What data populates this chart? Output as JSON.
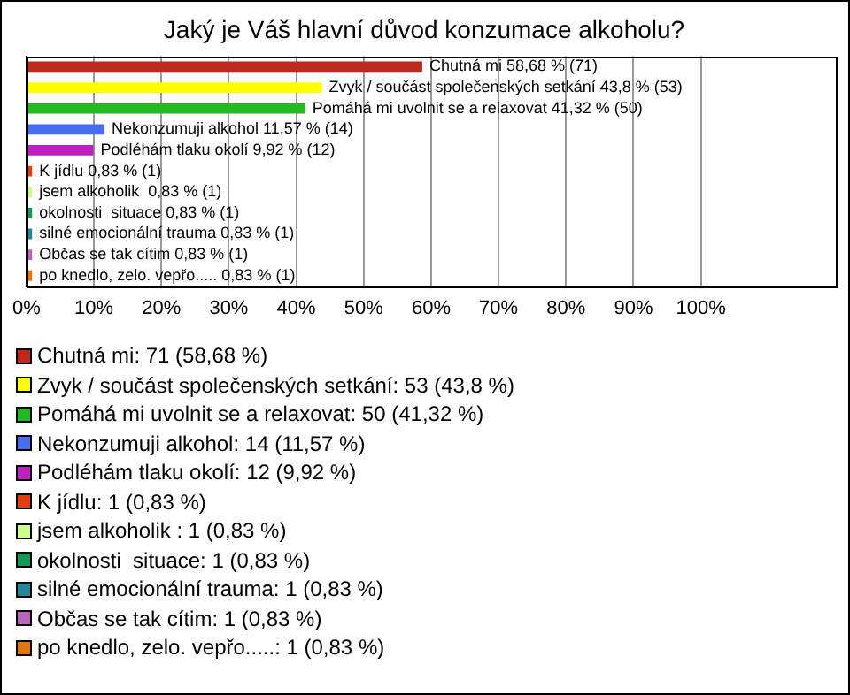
{
  "chart_data": {
    "type": "bar",
    "orientation": "horizontal",
    "stacked": true,
    "title": "Jaký je Váš hlavní důvod konzumace alkoholu?",
    "categories": [
      null,
      null,
      null,
      null,
      null,
      null,
      null,
      null,
      null,
      null,
      null
    ],
    "series": [
      {
        "name": "Chutná mi: 71 (58,68 %)",
        "color": "#c0281c",
        "values": [
          58.68,
          null,
          null,
          null,
          null,
          null,
          null,
          null,
          null,
          null,
          null
        ],
        "value_labels": [
          "Chutná mi 58,68 % (71)",
          null,
          null,
          null,
          null,
          null,
          null,
          null,
          null,
          null,
          null
        ]
      },
      {
        "name": "Zvyk / součást společenských setkání: 53 (43,8 %)",
        "color": "#ffff00",
        "values": [
          null,
          43.8,
          null,
          null,
          null,
          null,
          null,
          null,
          null,
          null,
          null
        ],
        "value_labels": [
          null,
          "Zvyk / součást společenských setkání 43,8 % (53)",
          null,
          null,
          null,
          null,
          null,
          null,
          null,
          null,
          null
        ]
      },
      {
        "name": "Pomáhá mi uvolnit se a relaxovat: 50 (41,32 %)",
        "color": "#22bb22",
        "values": [
          null,
          null,
          41.32,
          null,
          null,
          null,
          null,
          null,
          null,
          null,
          null
        ],
        "value_labels": [
          null,
          null,
          "Pomáhá mi uvolnit se a relaxovat 41,32 % (50)",
          null,
          null,
          null,
          null,
          null,
          null,
          null,
          null
        ]
      },
      {
        "name": "Nekonzumuji alkohol: 14 (11,57 %)",
        "color": "#4a6cf0",
        "values": [
          null,
          null,
          null,
          11.57,
          null,
          null,
          null,
          null,
          null,
          null,
          null
        ],
        "value_labels": [
          null,
          null,
          null,
          "Nekonzumuji alkohol 11,57 % (14)",
          null,
          null,
          null,
          null,
          null,
          null,
          null
        ]
      },
      {
        "name": "Podléhám tlaku okolí: 12 (9,92 %)",
        "color": "#c020c0",
        "values": [
          null,
          null,
          null,
          null,
          9.92,
          null,
          null,
          null,
          null,
          null,
          null
        ],
        "value_labels": [
          null,
          null,
          null,
          null,
          "Podléhám tlaku okolí 9,92 % (12)",
          null,
          null,
          null,
          null,
          null,
          null
        ]
      },
      {
        "name": "K jídlu: 1 (0,83 %)",
        "color": "#e04010",
        "values": [
          null,
          null,
          null,
          null,
          null,
          0.83,
          null,
          null,
          null,
          null,
          null
        ],
        "value_labels": [
          null,
          null,
          null,
          null,
          null,
          "K jídlu 0,83 % (1)",
          null,
          null,
          null,
          null,
          null
        ]
      },
      {
        "name": "jsem alkoholik : 1 (0,83 %)",
        "color": "#ccff88",
        "values": [
          null,
          null,
          null,
          null,
          null,
          null,
          0.83,
          null,
          null,
          null,
          null
        ],
        "value_labels": [
          null,
          null,
          null,
          null,
          null,
          null,
          "jsem alkoholik  0,83 % (1)",
          null,
          null,
          null,
          null
        ]
      },
      {
        "name": "okolnosti  situace: 1 (0,83 %)",
        "color": "#119955",
        "values": [
          null,
          null,
          null,
          null,
          null,
          null,
          null,
          0.83,
          null,
          null,
          null
        ],
        "value_labels": [
          null,
          null,
          null,
          null,
          null,
          null,
          null,
          "okolnosti  situace 0,83 % (1)",
          null,
          null,
          null
        ]
      },
      {
        "name": "silné emocionální trauma: 1 (0,83 %)",
        "color": "#228899",
        "values": [
          null,
          null,
          null,
          null,
          null,
          null,
          null,
          null,
          0.83,
          null,
          null
        ],
        "value_labels": [
          null,
          null,
          null,
          null,
          null,
          null,
          null,
          null,
          "silné emocionální trauma 0,83 % (1)",
          null,
          null
        ]
      },
      {
        "name": "Občas se tak cítim: 1 (0,83 %)",
        "color": "#bb66bb",
        "values": [
          null,
          null,
          null,
          null,
          null,
          null,
          null,
          null,
          null,
          0.83,
          null
        ],
        "value_labels": [
          null,
          null,
          null,
          null,
          null,
          null,
          null,
          null,
          null,
          "Občas se tak cítim 0,83 % (1)",
          null
        ]
      },
      {
        "name": "po knedlo, zelo. vepřo.....: 1 (0,83 %)",
        "color": "#e07a10",
        "values": [
          null,
          null,
          null,
          null,
          null,
          null,
          null,
          null,
          null,
          null,
          0.83
        ],
        "value_labels": [
          null,
          null,
          null,
          null,
          null,
          null,
          null,
          null,
          null,
          null,
          "po knedlo, zelo. vepřo..... 0,83 % (1)"
        ]
      }
    ],
    "xlim": [
      0,
      120
    ],
    "xticks": [
      {
        "value": 0,
        "label": "0%"
      },
      {
        "value": 10,
        "label": "10%"
      },
      {
        "value": 20,
        "label": "20%"
      },
      {
        "value": 30,
        "label": "30%"
      },
      {
        "value": 40,
        "label": "40%"
      },
      {
        "value": 50,
        "label": "50%"
      },
      {
        "value": 60,
        "label": "60%"
      },
      {
        "value": 70,
        "label": "70%"
      },
      {
        "value": 80,
        "label": "80%"
      },
      {
        "value": 90,
        "label": "90%"
      },
      {
        "value": 100,
        "label": "100%"
      }
    ],
    "tick_labels": "x",
    "grid": "x",
    "legend": "bottom"
  }
}
